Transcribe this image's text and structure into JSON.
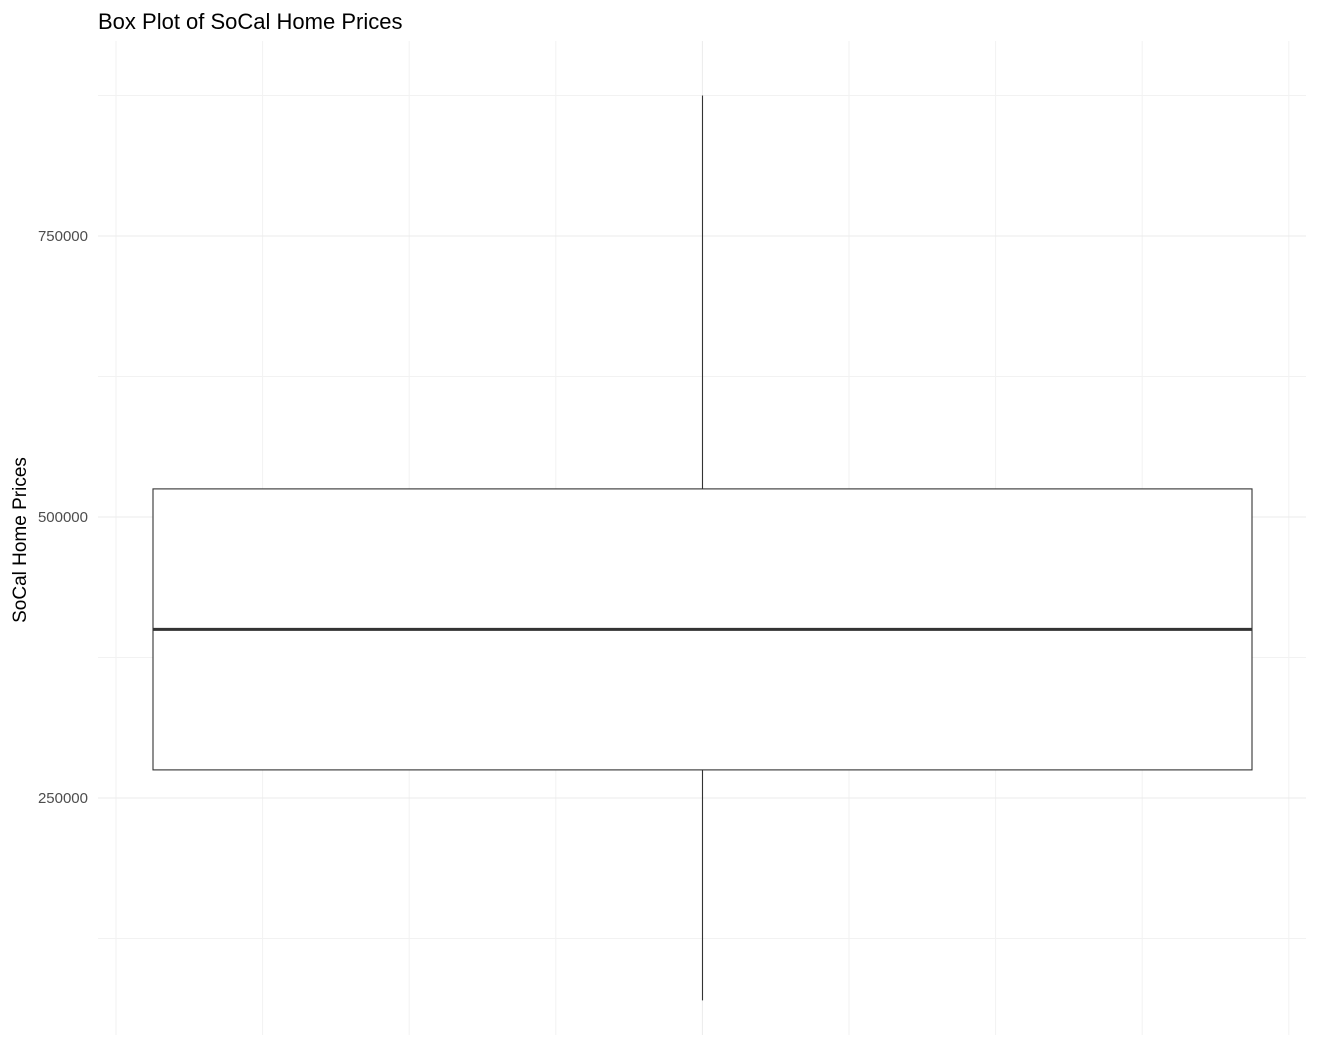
{
  "chart_data": {
    "type": "box",
    "title": "Box Plot of SoCal Home Prices",
    "xlabel": "",
    "ylabel": "SoCal Home Prices",
    "ylim": [
      50000,
      900000
    ],
    "y_ticks": [
      250000,
      500000,
      750000
    ],
    "y_tick_labels": [
      "250000",
      "500000",
      "750000"
    ],
    "y_minor_ticks": [
      125000,
      375000,
      625000,
      875000
    ],
    "grid": true,
    "boxes": [
      {
        "whisker_low": 70000,
        "q1": 275000,
        "median": 400000,
        "q3": 525000,
        "whisker_high": 875000
      }
    ]
  }
}
